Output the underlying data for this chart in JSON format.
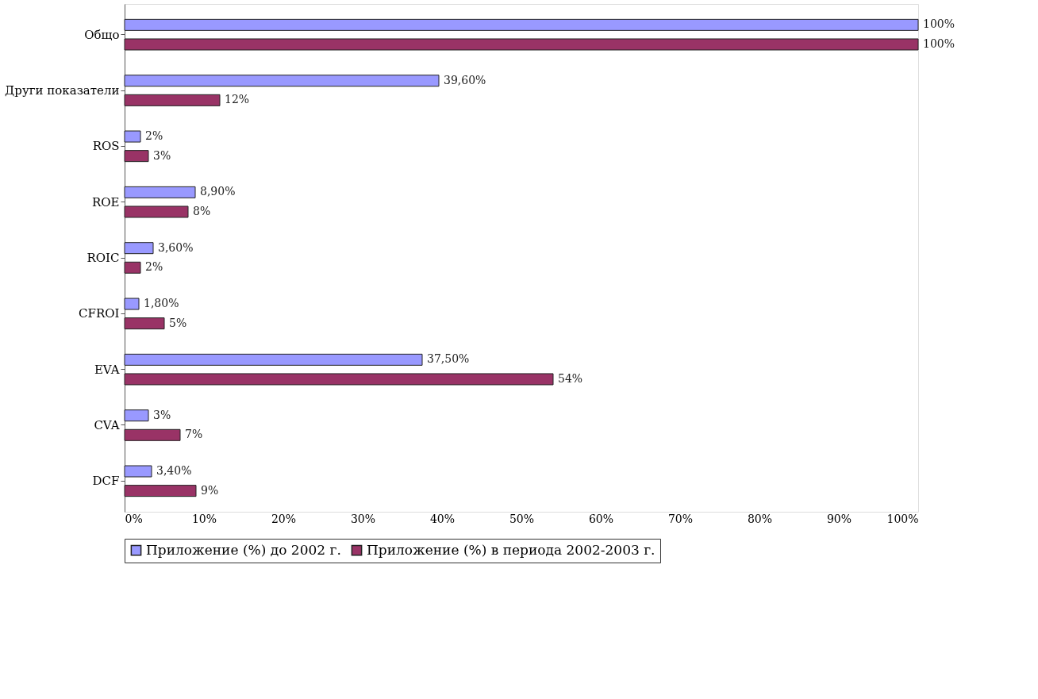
{
  "chart_data": {
    "type": "bar",
    "orientation": "horizontal",
    "categories": [
      "Общо",
      "Други показатели",
      "ROS",
      "ROE",
      "ROIC",
      "CFROI",
      "EVA",
      "CVA",
      "DCF"
    ],
    "series": [
      {
        "name": "Приложение (%) до 2002 г.",
        "color": "#9999ff",
        "values": [
          100,
          39.6,
          2,
          8.9,
          3.6,
          1.8,
          37.5,
          3,
          3.4
        ],
        "value_labels": [
          "100%",
          "39,60%",
          "2%",
          "8,90%",
          "3,60%",
          "1,80%",
          "37,50%",
          "3%",
          "3,40%"
        ]
      },
      {
        "name": "Приложение (%) в периода 2002-2003 г.",
        "color": "#993366",
        "values": [
          100,
          12,
          3,
          8,
          2,
          5,
          54,
          7,
          9
        ],
        "value_labels": [
          "100%",
          "12%",
          "3%",
          "8%",
          "2%",
          "5%",
          "54%",
          "7%",
          "9%"
        ]
      }
    ],
    "xlim": [
      0,
      100
    ],
    "xticks": [
      {
        "value": 0,
        "label": "0%"
      },
      {
        "value": 10,
        "label": "10%"
      },
      {
        "value": 20,
        "label": "20%"
      },
      {
        "value": 30,
        "label": "30%"
      },
      {
        "value": 40,
        "label": "40%"
      },
      {
        "value": 50,
        "label": "50%"
      },
      {
        "value": 60,
        "label": "60%"
      },
      {
        "value": 70,
        "label": "70%"
      },
      {
        "value": 80,
        "label": "80%"
      },
      {
        "value": 90,
        "label": "90%"
      },
      {
        "value": 100,
        "label": "100%"
      }
    ],
    "grid": false,
    "legend": "bottom"
  }
}
